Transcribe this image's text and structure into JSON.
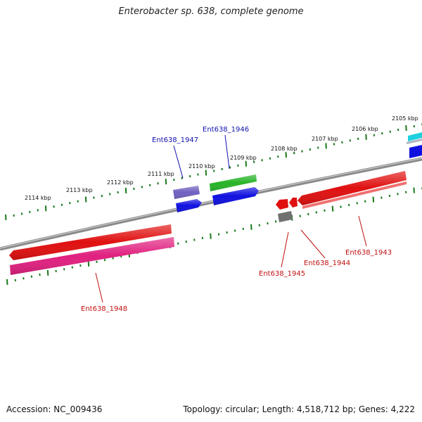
{
  "title": "Enterobacter sp. 638, complete genome",
  "footer": {
    "accession": "Accession: NC_009436",
    "topology": "Topology: circular; Length: 4,518,712 bp; Genes: 4,222"
  },
  "colors": {
    "backbone": "#808080",
    "ticks": "#1a7a1a",
    "forward_label": "#1010b0",
    "reverse_label": "#c01010",
    "red": "#e01010",
    "magenta": "#e0207f",
    "blue": "#1010e0",
    "green": "#28b428",
    "slate": "#7060c0",
    "grey": "#707070",
    "cyan": "#20d0e0"
  },
  "scale_labels": [
    "2105 kbp",
    "2106 kbp",
    "2107 kbp",
    "2108 kbp",
    "2109 kbp",
    "2110 kbp",
    "2111 kbp",
    "2112 kbp",
    "2113 kbp",
    "2114 kbp"
  ],
  "genes": [
    {
      "name": "Ent638_1947",
      "strand": "forward"
    },
    {
      "name": "Ent638_1946",
      "strand": "forward"
    },
    {
      "name": "Ent638_1945",
      "strand": "reverse"
    },
    {
      "name": "Ent638_1944",
      "strand": "reverse"
    },
    {
      "name": "Ent638_1943",
      "strand": "reverse"
    },
    {
      "name": "Ent638_1948",
      "strand": "reverse"
    }
  ]
}
